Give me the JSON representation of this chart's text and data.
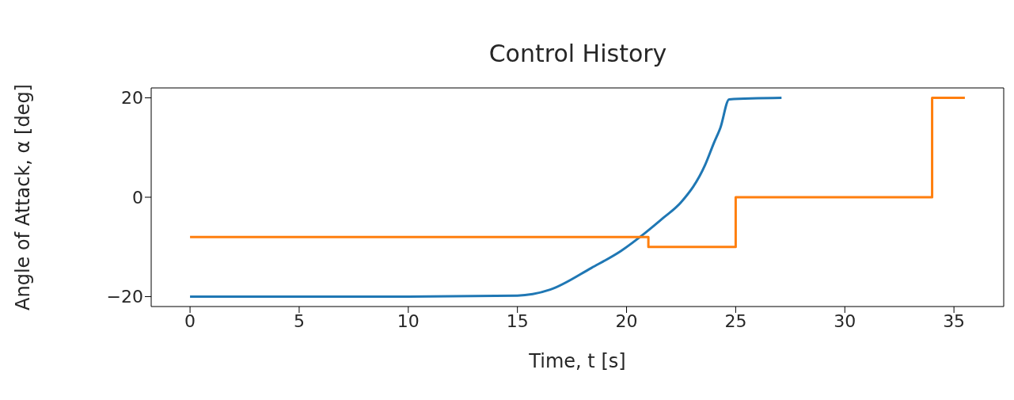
{
  "chart_data": {
    "type": "line",
    "title": "Control History",
    "xlabel": "Time, t [s]",
    "ylabel": "Angle of Attack, α [deg]",
    "xlim": [
      -1.78,
      37.28
    ],
    "ylim": [
      -22,
      22
    ],
    "xticks": [
      0,
      5,
      10,
      15,
      20,
      25,
      30,
      35
    ],
    "yticks": [
      -20,
      0,
      20
    ],
    "series": [
      {
        "color": "#1f77b4",
        "x": [
          0,
          5,
          10,
          15,
          15.7,
          16.5,
          18.4,
          19.75,
          20.85,
          21.7,
          22.5,
          23.6,
          24.0,
          24.3,
          24.7,
          27.1
        ],
        "values": [
          -20,
          -20,
          -20,
          -19.8,
          -19.5,
          -18.6,
          -14.2,
          -10.8,
          -7.2,
          -4.1,
          -1,
          6.5,
          10.9,
          14,
          19.7,
          20
        ]
      },
      {
        "type": "step",
        "color": "#ff7f0e",
        "x": [
          0,
          21,
          25,
          34,
          35.5
        ],
        "values": [
          -8,
          -10,
          0,
          20,
          20
        ]
      }
    ]
  }
}
